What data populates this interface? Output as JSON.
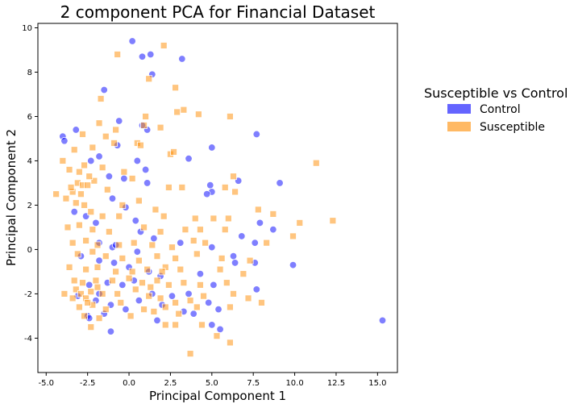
{
  "chart_data": {
    "type": "scatter",
    "title": "2 component PCA for Financial Dataset",
    "xlabel": "Principal Component 1",
    "ylabel": "Principal Component 2",
    "xlim": [
      -5.5,
      16.2
    ],
    "ylim": [
      -5.55,
      10.2
    ],
    "xticks": [
      "-5.0",
      "-2.5",
      "0.0",
      "2.5",
      "5.0",
      "7.5",
      "10.0",
      "12.5",
      "15.0"
    ],
    "xtick_values": [
      -5.0,
      -2.5,
      0.0,
      2.5,
      5.0,
      7.5,
      10.0,
      12.5,
      15.0
    ],
    "yticks": [
      "-4",
      "-2",
      "0",
      "2",
      "4",
      "6",
      "8",
      "10"
    ],
    "ytick_values": [
      -4,
      -2,
      0,
      2,
      4,
      6,
      8,
      10
    ],
    "grid": false,
    "legend": {
      "title": "Susceptible vs Control",
      "placement": "right-outside",
      "entries": [
        "Control",
        "Susceptible"
      ]
    },
    "series": [
      {
        "name": "Control",
        "marker": "circle",
        "color": "#0000ff",
        "points": [
          [
            0.2,
            9.4
          ],
          [
            0.8,
            8.7
          ],
          [
            1.3,
            8.8
          ],
          [
            3.2,
            8.6
          ],
          [
            1.4,
            7.9
          ],
          [
            -1.5,
            7.2
          ],
          [
            -0.6,
            5.8
          ],
          [
            0.8,
            5.6
          ],
          [
            1.1,
            5.4
          ],
          [
            3.6,
            4.1
          ],
          [
            5.0,
            4.6
          ],
          [
            7.7,
            5.2
          ],
          [
            6.6,
            3.1
          ],
          [
            9.1,
            3.0
          ],
          [
            -4.0,
            5.1
          ],
          [
            -3.9,
            4.9
          ],
          [
            -3.2,
            5.4
          ],
          [
            -2.3,
            4.0
          ],
          [
            -1.8,
            4.2
          ],
          [
            -0.7,
            4.7
          ],
          [
            0.5,
            4.0
          ],
          [
            1.0,
            3.6
          ],
          [
            -0.3,
            3.2
          ],
          [
            -1.2,
            3.3
          ],
          [
            1.1,
            3.0
          ],
          [
            4.9,
            2.9
          ],
          [
            5.0,
            2.6
          ],
          [
            4.7,
            2.5
          ],
          [
            -3.3,
            1.7
          ],
          [
            -2.6,
            1.5
          ],
          [
            -1.0,
            2.3
          ],
          [
            -0.2,
            1.9
          ],
          [
            0.4,
            1.3
          ],
          [
            0.7,
            0.8
          ],
          [
            7.9,
            1.2
          ],
          [
            6.8,
            0.6
          ],
          [
            7.6,
            0.3
          ],
          [
            8.7,
            0.9
          ],
          [
            -2.0,
            1.2
          ],
          [
            -1.8,
            0.3
          ],
          [
            -1.0,
            0.1
          ],
          [
            -0.8,
            0.2
          ],
          [
            0.5,
            -0.1
          ],
          [
            1.5,
            0.5
          ],
          [
            3.1,
            0.3
          ],
          [
            5.0,
            0.1
          ],
          [
            6.3,
            -0.3
          ],
          [
            6.4,
            -0.6
          ],
          [
            7.6,
            -0.6
          ],
          [
            9.9,
            -0.7
          ],
          [
            -2.9,
            -0.3
          ],
          [
            -1.8,
            -0.5
          ],
          [
            -0.9,
            -0.6
          ],
          [
            0.0,
            -0.8
          ],
          [
            1.2,
            -1.0
          ],
          [
            -2.4,
            -1.6
          ],
          [
            -1.3,
            -1.5
          ],
          [
            -0.4,
            -1.6
          ],
          [
            0.3,
            -1.4
          ],
          [
            1.9,
            -1.2
          ],
          [
            4.3,
            -1.1
          ],
          [
            5.1,
            -1.6
          ],
          [
            7.7,
            -1.8
          ],
          [
            -3.1,
            -2.1
          ],
          [
            -2.0,
            -2.3
          ],
          [
            -1.1,
            -2.5
          ],
          [
            -0.2,
            -2.7
          ],
          [
            0.6,
            -2.3
          ],
          [
            1.4,
            -2.0
          ],
          [
            2.6,
            -2.1
          ],
          [
            3.6,
            -2.0
          ],
          [
            4.8,
            -2.4
          ],
          [
            5.4,
            -2.7
          ],
          [
            -2.5,
            -3.0
          ],
          [
            -1.5,
            -2.9
          ],
          [
            -2.4,
            -3.1
          ],
          [
            -1.1,
            -3.7
          ],
          [
            1.7,
            -3.2
          ],
          [
            3.3,
            -2.8
          ],
          [
            5.5,
            -3.6
          ],
          [
            5.0,
            -3.4
          ],
          [
            15.3,
            -3.2
          ],
          [
            3.9,
            -2.9
          ],
          [
            2.0,
            -2.5
          ],
          [
            -1.8,
            -2.0
          ]
        ]
      },
      {
        "name": "Susceptible",
        "marker": "square",
        "color": "#ff8c00",
        "points": [
          [
            2.1,
            9.2
          ],
          [
            -0.7,
            8.8
          ],
          [
            1.2,
            7.7
          ],
          [
            2.8,
            7.3
          ],
          [
            -1.7,
            6.8
          ],
          [
            2.9,
            6.2
          ],
          [
            3.3,
            6.3
          ],
          [
            4.2,
            6.1
          ],
          [
            6.1,
            6.0
          ],
          [
            1.0,
            6.0
          ],
          [
            -1.8,
            5.7
          ],
          [
            0.9,
            5.6
          ],
          [
            1.9,
            5.5
          ],
          [
            -0.8,
            5.4
          ],
          [
            -2.8,
            5.2
          ],
          [
            -1.4,
            5.1
          ],
          [
            0.5,
            4.8
          ],
          [
            0.7,
            4.7
          ],
          [
            -0.9,
            4.8
          ],
          [
            -2.2,
            4.6
          ],
          [
            -3.3,
            4.5
          ],
          [
            -4.0,
            4.0
          ],
          [
            2.5,
            4.3
          ],
          [
            2.7,
            4.4
          ],
          [
            11.3,
            3.9
          ],
          [
            -3.6,
            3.6
          ],
          [
            -2.7,
            3.8
          ],
          [
            -1.6,
            3.7
          ],
          [
            -0.3,
            3.5
          ],
          [
            0.2,
            3.2
          ],
          [
            6.3,
            3.3
          ],
          [
            -3.1,
            3.0
          ],
          [
            -2.8,
            2.9
          ],
          [
            -2.5,
            2.9
          ],
          [
            -2.1,
            3.1
          ],
          [
            -3.4,
            2.6
          ],
          [
            -2.9,
            2.5
          ],
          [
            -3.8,
            2.3
          ],
          [
            -4.4,
            2.5
          ],
          [
            -1.3,
            2.7
          ],
          [
            2.4,
            2.8
          ],
          [
            3.2,
            2.8
          ],
          [
            5.8,
            2.8
          ],
          [
            6.4,
            2.6
          ],
          [
            7.8,
            1.8
          ],
          [
            8.7,
            1.6
          ],
          [
            0.6,
            2.2
          ],
          [
            -0.4,
            2.0
          ],
          [
            -2.7,
            2.0
          ],
          [
            -3.2,
            2.1
          ],
          [
            -2.3,
            1.7
          ],
          [
            -1.6,
            1.5
          ],
          [
            -0.6,
            1.5
          ],
          [
            1.6,
            1.8
          ],
          [
            2.1,
            1.5
          ],
          [
            4.0,
            1.4
          ],
          [
            5.1,
            1.4
          ],
          [
            6.0,
            1.4
          ],
          [
            12.3,
            1.3
          ],
          [
            10.3,
            1.2
          ],
          [
            -3.7,
            1.0
          ],
          [
            -3.0,
            1.1
          ],
          [
            -2.2,
            0.9
          ],
          [
            -1.2,
            0.8
          ],
          [
            0.9,
            1.0
          ],
          [
            1.9,
            0.8
          ],
          [
            3.4,
            0.9
          ],
          [
            4.3,
            0.9
          ],
          [
            5.8,
            0.9
          ],
          [
            9.9,
            0.6
          ],
          [
            -3.4,
            0.3
          ],
          [
            -2.6,
            0.4
          ],
          [
            -1.9,
            0.2
          ],
          [
            -0.6,
            0.2
          ],
          [
            0.3,
            0.3
          ],
          [
            1.4,
            0.2
          ],
          [
            2.6,
            0.1
          ],
          [
            3.9,
            0.4
          ],
          [
            4.6,
            0.3
          ],
          [
            8.3,
            0.3
          ],
          [
            -3.1,
            -0.2
          ],
          [
            -2.2,
            -0.1
          ],
          [
            -1.4,
            -0.3
          ],
          [
            -0.4,
            -0.4
          ],
          [
            0.6,
            -0.5
          ],
          [
            1.7,
            -0.3
          ],
          [
            2.8,
            -0.4
          ],
          [
            4.1,
            -0.2
          ],
          [
            5.6,
            -0.4
          ],
          [
            7.3,
            -0.5
          ],
          [
            -3.6,
            -0.8
          ],
          [
            -2.6,
            -0.9
          ],
          [
            -1.9,
            -0.8
          ],
          [
            -0.8,
            -1.0
          ],
          [
            0.2,
            -1.0
          ],
          [
            1.1,
            -0.9
          ],
          [
            2.2,
            -0.8
          ],
          [
            3.1,
            -0.9
          ],
          [
            5.5,
            -0.9
          ],
          [
            6.9,
            -1.1
          ],
          [
            -3.3,
            -1.4
          ],
          [
            -2.8,
            -1.5
          ],
          [
            -2.0,
            -1.4
          ],
          [
            -1.0,
            -1.4
          ],
          [
            0.8,
            -1.5
          ],
          [
            1.7,
            -1.4
          ],
          [
            2.4,
            -1.6
          ],
          [
            3.3,
            -1.5
          ],
          [
            4.3,
            -1.6
          ],
          [
            5.9,
            -1.5
          ],
          [
            -3.2,
            -1.8
          ],
          [
            -2.9,
            -2.0
          ],
          [
            -2.6,
            -2.2
          ],
          [
            -3.4,
            -2.2
          ],
          [
            -2.3,
            -1.9
          ],
          [
            -1.6,
            -2.0
          ],
          [
            -0.7,
            -2.0
          ],
          [
            0.4,
            -1.8
          ],
          [
            1.2,
            -2.1
          ],
          [
            1.9,
            -2.2
          ],
          [
            2.8,
            -2.4
          ],
          [
            3.7,
            -2.3
          ],
          [
            4.5,
            -2.1
          ],
          [
            6.3,
            -2.0
          ],
          [
            7.2,
            -2.2
          ],
          [
            8.0,
            -2.4
          ],
          [
            -3.0,
            -2.6
          ],
          [
            -2.2,
            -2.5
          ],
          [
            -1.4,
            -2.7
          ],
          [
            -0.5,
            -2.4
          ],
          [
            0.9,
            -2.7
          ],
          [
            1.5,
            -2.8
          ],
          [
            2.2,
            -2.6
          ],
          [
            3.0,
            -2.9
          ],
          [
            4.1,
            -2.6
          ],
          [
            6.1,
            -2.6
          ],
          [
            -2.7,
            -3.0
          ],
          [
            -1.8,
            -3.1
          ],
          [
            0.1,
            -3.0
          ],
          [
            2.2,
            -3.4
          ],
          [
            2.8,
            -3.4
          ],
          [
            4.4,
            -3.4
          ],
          [
            -2.3,
            -3.5
          ],
          [
            5.3,
            -3.9
          ],
          [
            6.1,
            -4.2
          ],
          [
            3.7,
            -4.7
          ],
          [
            -3.9,
            -2.0
          ],
          [
            -2.5,
            -2.4
          ],
          [
            -1.9,
            -1.7
          ],
          [
            0.0,
            -1.3
          ],
          [
            1.3,
            -1.7
          ],
          [
            2.0,
            -1.0
          ],
          [
            -3.5,
            2.8
          ],
          [
            -3.0,
            3.5
          ],
          [
            -2.4,
            3.3
          ]
        ]
      }
    ]
  }
}
